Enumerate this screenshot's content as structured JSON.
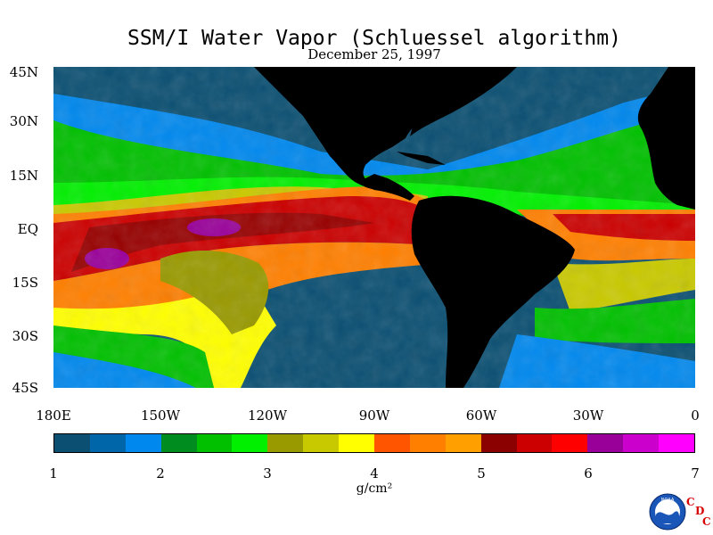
{
  "title": "SSM/I Water Vapor (Schluessel algorithm)",
  "subtitle": "December 25, 1997",
  "lat_labels": [
    "45N",
    "30N",
    "15N",
    "EQ",
    "15S",
    "30S",
    "45S"
  ],
  "lon_labels": [
    "180E",
    "150W",
    "120W",
    "90W",
    "60W",
    "30W",
    "0"
  ],
  "colorbar": {
    "labels": [
      "1",
      "2",
      "3",
      "4",
      "5",
      "6",
      "7"
    ],
    "colors": [
      "#0b4f72",
      "#0066aa",
      "#0088ee",
      "#008c1e",
      "#00c000",
      "#00f000",
      "#999900",
      "#c9c900",
      "#ffff00",
      "#ff5500",
      "#ff7f00",
      "#ffa000",
      "#8b0000",
      "#cc0000",
      "#ff0000",
      "#990099",
      "#cc00cc",
      "#ff00ff"
    ],
    "units": "g/cm²"
  },
  "logo": {
    "name": "NOAA",
    "org_letters": [
      "C",
      "D",
      "C"
    ]
  },
  "colors": {
    "land": "#000000",
    "ocean_dry": "#0b4f72",
    "tropics": "#cc0000"
  }
}
